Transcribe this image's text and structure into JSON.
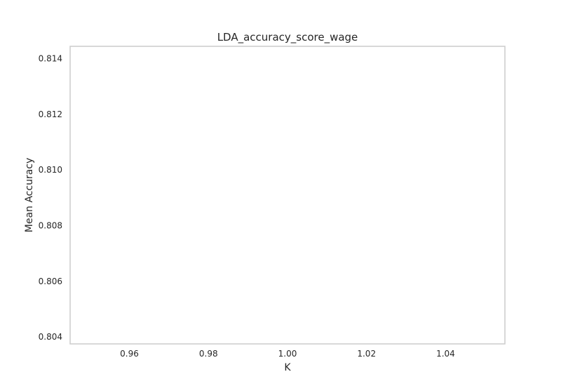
{
  "chart_data": {
    "type": "line",
    "title": "LDA_accuracy_score_wage",
    "xlabel": "K",
    "ylabel": "Mean Accuracy",
    "x_ticks": [
      {
        "value": 0.96,
        "label": "0.96"
      },
      {
        "value": 0.98,
        "label": "0.98"
      },
      {
        "value": 1.0,
        "label": "1.00"
      },
      {
        "value": 1.02,
        "label": "1.02"
      },
      {
        "value": 1.04,
        "label": "1.04"
      }
    ],
    "y_ticks": [
      {
        "value": 0.804,
        "label": "0.804"
      },
      {
        "value": 0.806,
        "label": "0.806"
      },
      {
        "value": 0.808,
        "label": "0.808"
      },
      {
        "value": 0.81,
        "label": "0.810"
      },
      {
        "value": 0.812,
        "label": "0.812"
      },
      {
        "value": 0.814,
        "label": "0.814"
      }
    ],
    "xlim": [
      0.945,
      1.055
    ],
    "ylim": [
      0.80375,
      0.81444
    ],
    "series": [],
    "grid": false,
    "legend": "none",
    "colors": {
      "frame": "#cccccc",
      "text": "#262626",
      "background": "#ffffff"
    }
  }
}
